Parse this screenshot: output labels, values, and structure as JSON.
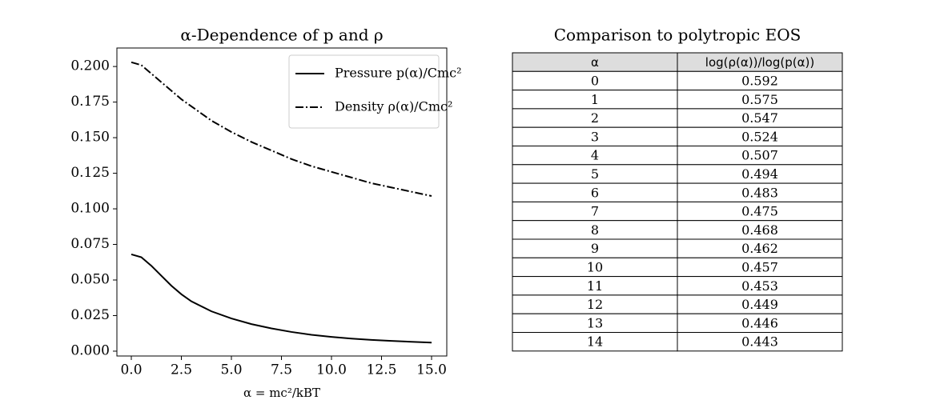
{
  "chart_data": [
    {
      "type": "line",
      "title": "α-Dependence of p and ρ",
      "x_label": "α = mc²/kBT",
      "x": [
        0,
        0.5,
        1,
        1.5,
        2,
        2.5,
        3,
        4,
        5,
        6,
        7,
        8,
        9,
        10,
        11,
        12,
        13,
        14,
        15
      ],
      "series": [
        {
          "name": "Pressure p(α)/Cmc²",
          "color": "#000000",
          "linestyle": "solid",
          "values": [
            0.068,
            0.066,
            0.06,
            0.053,
            0.046,
            0.04,
            0.035,
            0.028,
            0.023,
            0.019,
            0.016,
            0.0135,
            0.0115,
            0.01,
            0.0088,
            0.0079,
            0.0072,
            0.0066,
            0.006
          ]
        },
        {
          "name": "Density ρ(α)/Cmc²",
          "color": "#000000",
          "linestyle": "dashdot",
          "values": [
            0.203,
            0.201,
            0.195,
            0.189,
            0.183,
            0.177,
            0.172,
            0.162,
            0.154,
            0.147,
            0.141,
            0.135,
            0.13,
            0.126,
            0.122,
            0.118,
            0.115,
            0.112,
            0.109
          ]
        }
      ],
      "xlim": [
        -0.72,
        15.76
      ],
      "ylim": [
        -0.0034,
        0.213
      ],
      "xticks": [
        {
          "value": 0,
          "label": "0.0"
        },
        {
          "value": 2.5,
          "label": "2.5"
        },
        {
          "value": 5,
          "label": "5.0"
        },
        {
          "value": 7.5,
          "label": "7.5"
        },
        {
          "value": 10,
          "label": "10.0"
        },
        {
          "value": 12.5,
          "label": "12.5"
        },
        {
          "value": 15,
          "label": "15.0"
        }
      ],
      "yticks": [
        {
          "value": 0,
          "label": "0.000"
        },
        {
          "value": 0.025,
          "label": "0.025"
        },
        {
          "value": 0.05,
          "label": "0.050"
        },
        {
          "value": 0.075,
          "label": "0.075"
        },
        {
          "value": 0.1,
          "label": "0.100"
        },
        {
          "value": 0.125,
          "label": "0.125"
        },
        {
          "value": 0.15,
          "label": "0.150"
        },
        {
          "value": 0.175,
          "label": "0.175"
        },
        {
          "value": 0.2,
          "label": "0.200"
        }
      ],
      "grid": false,
      "legend": "upper right"
    },
    {
      "type": "table",
      "title": "Comparison to polytropic EOS",
      "columns": [
        "α",
        "log(ρ(α))/log(p(α))"
      ],
      "rows": [
        [
          0,
          0.592
        ],
        [
          1,
          0.575
        ],
        [
          2,
          0.547
        ],
        [
          3,
          0.524
        ],
        [
          4,
          0.507
        ],
        [
          5,
          0.494
        ],
        [
          6,
          0.483
        ],
        [
          7,
          0.475
        ],
        [
          8,
          0.468
        ],
        [
          9,
          0.462
        ],
        [
          10,
          0.457
        ],
        [
          11,
          0.453
        ],
        [
          12,
          0.449
        ],
        [
          13,
          0.446
        ],
        [
          14,
          0.443
        ]
      ],
      "header_color": "#dddddd"
    }
  ]
}
